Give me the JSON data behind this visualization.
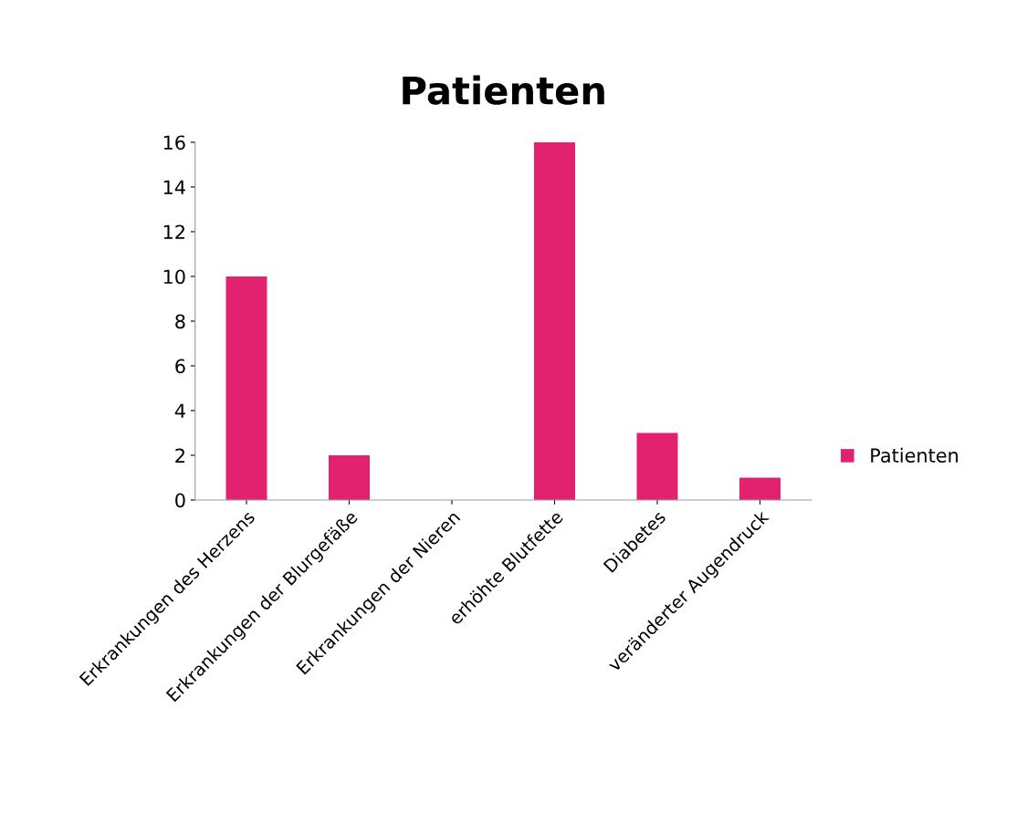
{
  "chart_data": {
    "type": "bar",
    "title": "Patienten",
    "categories": [
      "Erkrankungen des Herzens",
      "Erkrankungen der Blurgefäße",
      "Erkrankungen der Nieren",
      "erhöhte Blutfette",
      "Diabetes",
      "veränderter Augendruck"
    ],
    "series": [
      {
        "name": "Patienten",
        "color": "#e3226f",
        "values": [
          10,
          2,
          0,
          16,
          3,
          1
        ]
      }
    ],
    "ylim": [
      0,
      16
    ],
    "yticks": [
      0,
      2,
      4,
      6,
      8,
      10,
      12,
      14,
      16
    ],
    "grid": false,
    "legend": "right"
  }
}
